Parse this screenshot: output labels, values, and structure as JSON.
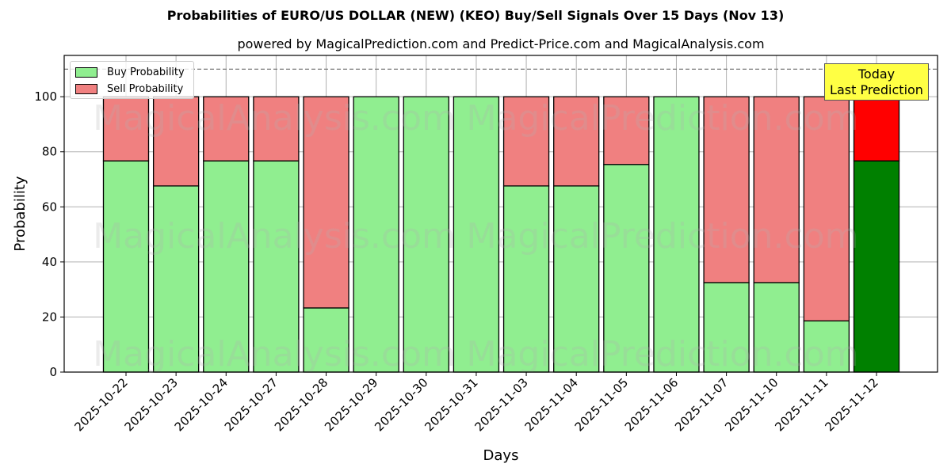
{
  "chart_data": {
    "type": "bar",
    "stacked": true,
    "title": "Probabilities of EURO/US DOLLAR (NEW) (KEO) Buy/Sell Signals Over 15 Days (Nov 13)",
    "subtitle": "powered by MagicalPrediction.com and Predict-Price.com and MagicalAnalysis.com",
    "xlabel": "Days",
    "ylabel": "Probability",
    "ylim": [
      0,
      115
    ],
    "yticks": [
      0,
      20,
      40,
      60,
      80,
      100
    ],
    "grid": true,
    "legend_position": "upper left",
    "reference_line": {
      "y": 110,
      "style": "dashed"
    },
    "categories": [
      "2025-10-22",
      "2025-10-23",
      "2025-10-24",
      "2025-10-27",
      "2025-10-28",
      "2025-10-29",
      "2025-10-30",
      "2025-10-31",
      "2025-11-03",
      "2025-11-04",
      "2025-11-05",
      "2025-11-06",
      "2025-11-07",
      "2025-11-10",
      "2025-11-11",
      "2025-11-12"
    ],
    "series": [
      {
        "name": "Buy Probability",
        "color": "#90ee90",
        "values": [
          76.7,
          67.6,
          76.7,
          76.7,
          23.3,
          100,
          100,
          100,
          67.6,
          67.6,
          75.4,
          100,
          32.5,
          32.5,
          18.6,
          76.7
        ]
      },
      {
        "name": "Sell Probability",
        "color": "#f08080",
        "values": [
          23.3,
          32.4,
          23.3,
          23.3,
          76.7,
          0,
          0,
          0,
          32.4,
          32.4,
          24.6,
          0,
          67.5,
          67.5,
          81.4,
          23.3
        ]
      }
    ],
    "highlight": {
      "index": 15,
      "buy_color": "#008000",
      "sell_color": "#ff0000",
      "annotation": "Today\nLast Prediction"
    },
    "watermarks": [
      "MagicalAnalysis.com",
      "MagicalPrediction.com"
    ]
  },
  "legend": {
    "buy": "Buy Probability",
    "sell": "Sell Probability"
  },
  "annotation": {
    "line1": "Today",
    "line2": "Last Prediction"
  }
}
